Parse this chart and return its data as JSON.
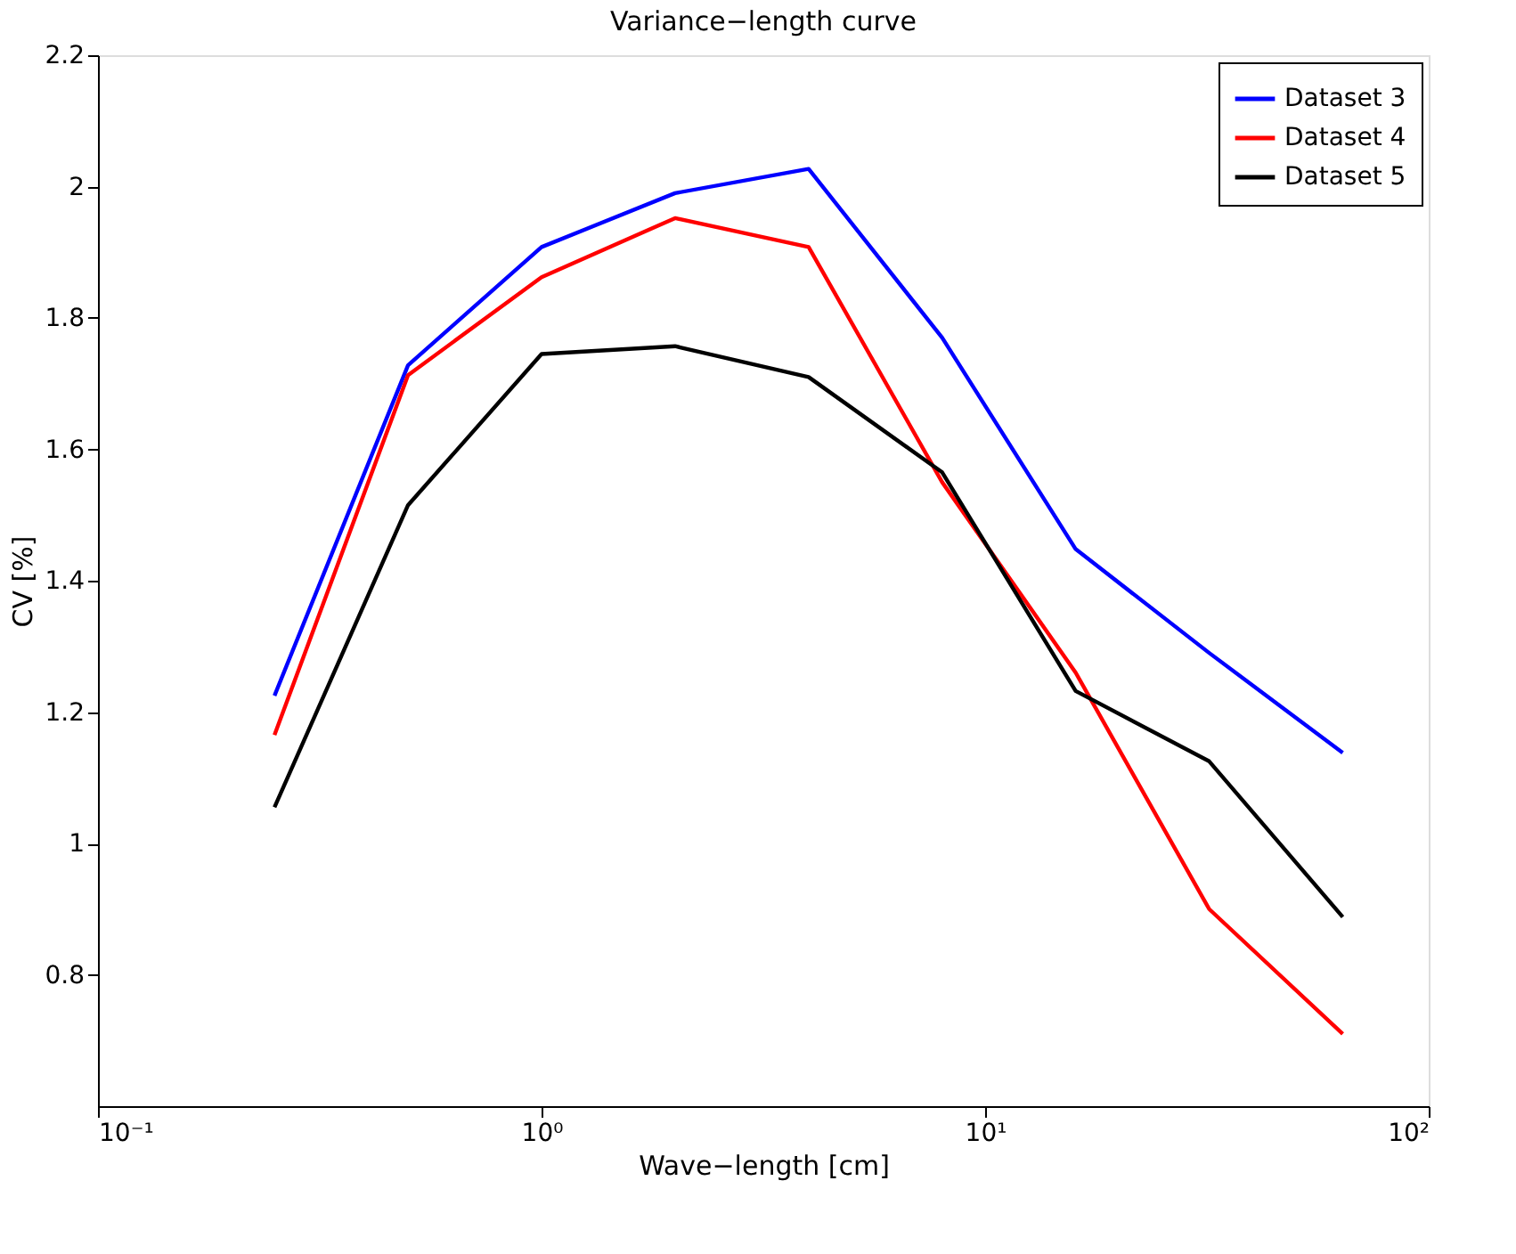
{
  "chart_data": {
    "type": "line",
    "title": "Variance−length curve",
    "xlabel": "Wave−length [cm]",
    "ylabel": "CV [%]",
    "x": [
      0.25,
      0.5,
      1,
      2,
      4,
      8,
      16,
      32,
      64
    ],
    "series": [
      {
        "name": "Dataset 3",
        "color": "#0000ff",
        "values": [
          1.225,
          1.728,
          1.908,
          1.99,
          2.027,
          1.77,
          1.448,
          1.29,
          1.138
        ]
      },
      {
        "name": "Dataset 4",
        "color": "#ff0000",
        "values": [
          1.165,
          1.713,
          1.862,
          1.952,
          1.908,
          1.55,
          1.26,
          0.9,
          0.71
        ]
      },
      {
        "name": "Dataset 5",
        "color": "#000000",
        "values": [
          1.055,
          1.515,
          1.745,
          1.757,
          1.71,
          1.565,
          1.232,
          1.125,
          0.888
        ]
      }
    ],
    "log": "x",
    "xlim": [
      0.1,
      100
    ],
    "xticks": [
      {
        "value": 0.1,
        "label": "10⁻¹"
      },
      {
        "value": 1,
        "label": "10⁰"
      },
      {
        "value": 10,
        "label": "10¹"
      },
      {
        "value": 100,
        "label": "10²"
      }
    ],
    "ylim": [
      0.6,
      2.2
    ],
    "yticks": [
      0.8,
      1,
      1.2,
      1.4,
      1.6,
      1.8,
      2,
      2.2
    ],
    "grid": false,
    "legend": "top right",
    "marker": "none",
    "line_style": "solid"
  }
}
